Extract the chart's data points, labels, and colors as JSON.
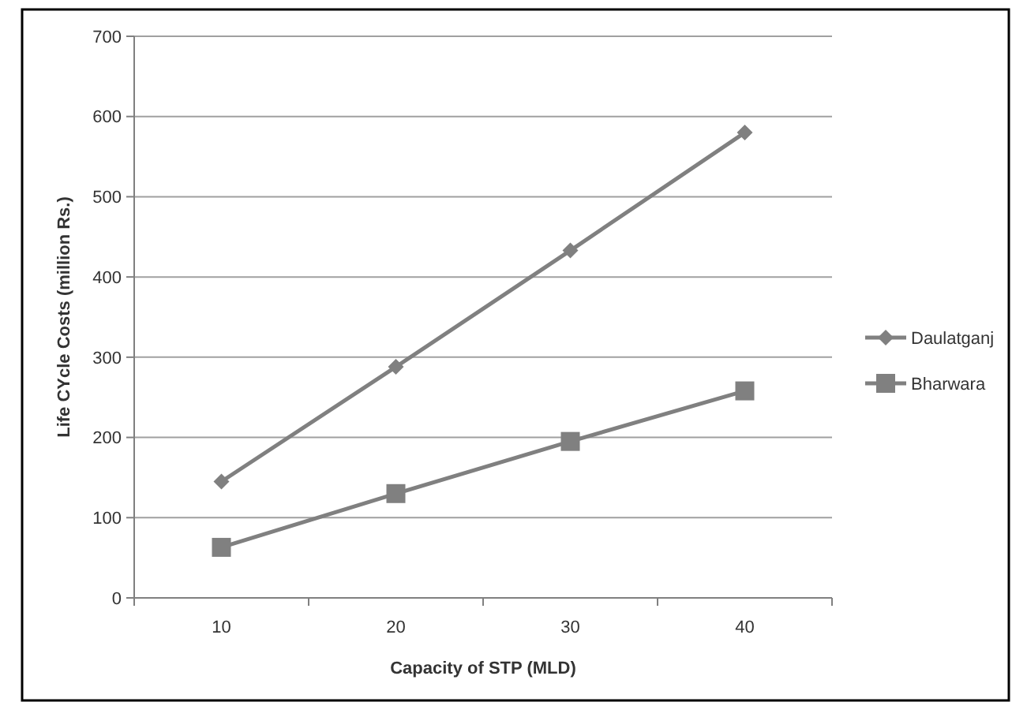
{
  "chart_data": {
    "type": "line",
    "xlabel": "Capacity of STP (MLD)",
    "ylabel": "Life CYcle Costs (million Rs.)",
    "categories": [
      "10",
      "20",
      "30",
      "40"
    ],
    "ylim": [
      0,
      700
    ],
    "yticks": [
      0,
      100,
      200,
      300,
      400,
      500,
      600,
      700
    ],
    "grid": "y",
    "legend": "right",
    "line_style": "solid",
    "series": [
      {
        "name": "Daulatganj",
        "color": "#808080",
        "marker": "diamond",
        "values": [
          145,
          288,
          433,
          580
        ]
      },
      {
        "name": "Bharwara",
        "color": "#808080",
        "marker": "square",
        "values": [
          63,
          130,
          195,
          258
        ]
      }
    ]
  }
}
